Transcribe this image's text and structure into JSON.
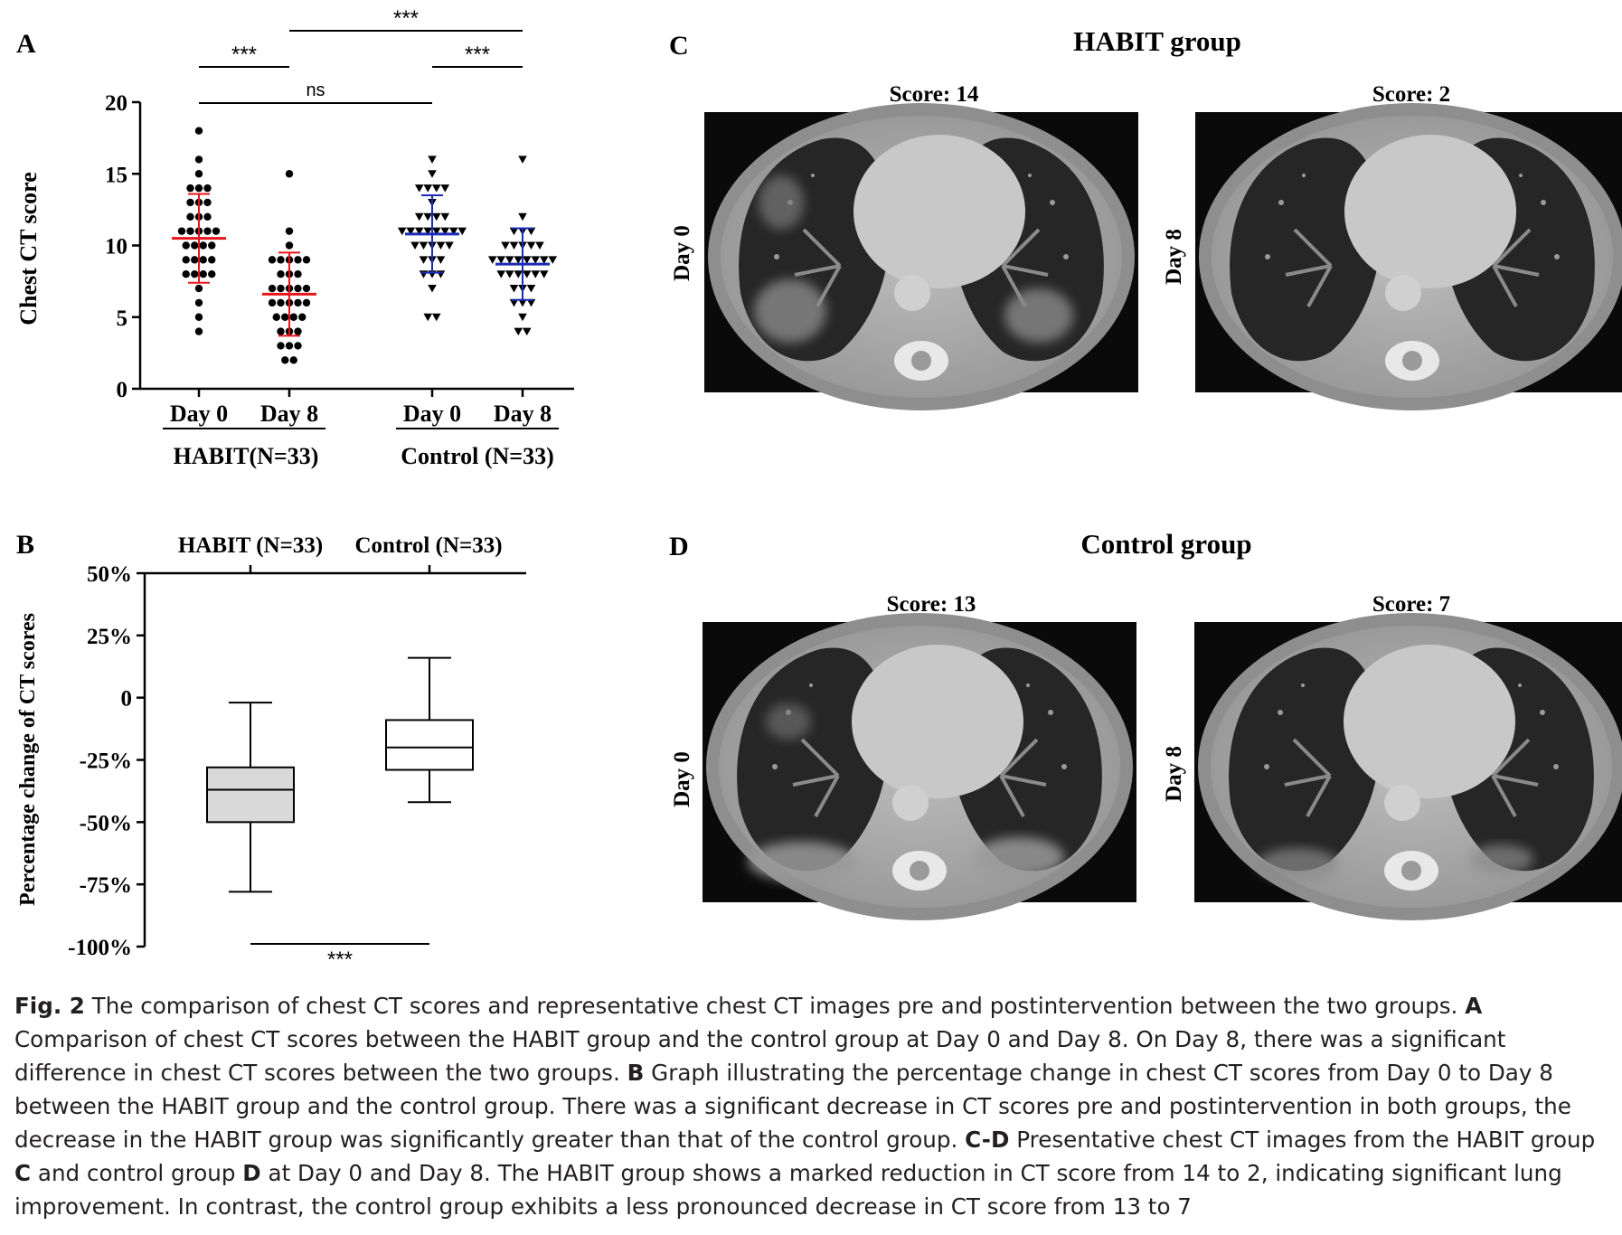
{
  "panels": {
    "A": {
      "letter": "A",
      "chart_data": {
        "type": "scatter",
        "ylabel": "Chest CT score",
        "ylim": [
          0,
          20
        ],
        "yticks": [
          "0",
          "5",
          "10",
          "15",
          "20"
        ],
        "categories": [
          "Day 0",
          "Day 8",
          "Day 0",
          "Day 8"
        ],
        "groups": [
          "HABIT(N=33)",
          "Control (N=33)"
        ],
        "series": [
          {
            "group": "HABIT(N=33)",
            "day": "Day 0",
            "marker": "circle",
            "color": "#000000",
            "bar_color": "#e8141b",
            "mean": 10.5,
            "sd": 3.1,
            "values": [
              18,
              16,
              15,
              14,
              14,
              14,
              13,
              13,
              13,
              12,
              12,
              12,
              11,
              11,
              11,
              11,
              11,
              10,
              10,
              10,
              10,
              9,
              9,
              9,
              9,
              8,
              8,
              8,
              8,
              7,
              6,
              5,
              4
            ]
          },
          {
            "group": "HABIT(N=33)",
            "day": "Day 8",
            "marker": "circle",
            "color": "#000000",
            "bar_color": "#e8141b",
            "mean": 6.6,
            "sd": 2.9,
            "values": [
              15,
              11,
              10,
              9,
              9,
              9,
              9,
              9,
              8,
              8,
              8,
              7,
              7,
              7,
              7,
              7,
              6,
              6,
              6,
              6,
              6,
              5,
              5,
              5,
              5,
              4,
              4,
              4,
              3,
              3,
              3,
              2,
              2
            ]
          },
          {
            "group": "Control (N=33)",
            "day": "Day 0",
            "marker": "triangle-down",
            "color": "#000000",
            "bar_color": "#1b2bb5",
            "mean": 10.8,
            "sd": 2.7,
            "values": [
              16,
              15,
              14,
              14,
              14,
              14,
              13,
              12,
              12,
              12,
              12,
              11,
              11,
              11,
              11,
              11,
              11,
              11,
              11,
              10,
              10,
              10,
              10,
              10,
              9,
              9,
              9,
              8,
              8,
              8,
              7,
              5,
              5
            ]
          },
          {
            "group": "Control (N=33)",
            "day": "Day 8",
            "marker": "triangle-down",
            "color": "#000000",
            "bar_color": "#1b2bb5",
            "mean": 8.7,
            "sd": 2.5,
            "values": [
              16,
              12,
              11,
              11,
              11,
              10,
              10,
              10,
              10,
              10,
              9,
              9,
              9,
              9,
              9,
              9,
              9,
              9,
              8,
              8,
              8,
              8,
              8,
              8,
              7,
              7,
              7,
              6,
              6,
              6,
              5,
              4,
              4
            ]
          }
        ],
        "significance": [
          {
            "from": 0,
            "to": 1,
            "label": "***"
          },
          {
            "from": 1,
            "to": 3,
            "label": "***"
          },
          {
            "from": 2,
            "to": 3,
            "label": "***"
          },
          {
            "from": 0,
            "to": 2,
            "label": "ns"
          }
        ]
      }
    },
    "B": {
      "letter": "B",
      "chart_data": {
        "type": "box",
        "ylabel": "Percentage change of  CT scores",
        "ylim": [
          -100,
          50
        ],
        "yticks": [
          "50%",
          "25%",
          "0",
          "-25%",
          "-50%",
          "-75%",
          "-100%"
        ],
        "categories": [
          "HABIT (N=33)",
          "Control (N=33)"
        ],
        "boxes": [
          {
            "name": "HABIT (N=33)",
            "min": -78,
            "q1": -50,
            "median": -37,
            "q3": -28,
            "max": -2,
            "fill": "#d9d9d9"
          },
          {
            "name": "Control (N=33)",
            "min": -42,
            "q1": -29,
            "median": -20,
            "q3": -9,
            "max": 16,
            "fill": "#ffffff"
          }
        ],
        "significance": [
          {
            "from": 0,
            "to": 1,
            "label": "***"
          }
        ]
      }
    },
    "C": {
      "letter": "C",
      "title": "HABIT group",
      "images": [
        {
          "score": "Score: 14",
          "day": "Day 0"
        },
        {
          "score": "Score: 2",
          "day": "Day 8"
        }
      ]
    },
    "D": {
      "letter": "D",
      "title": "Control group",
      "images": [
        {
          "score": "Score: 13",
          "day": "Day 0"
        },
        {
          "score": "Score: 7",
          "day": "Day 8"
        }
      ]
    }
  },
  "caption": {
    "label": "Fig. 2",
    "s1": "  The comparison of chest CT scores and representative chest CT images pre and postintervention between the two groups. ",
    "a": "A",
    "s2": " Comparison of chest CT scores between the HABIT group and the control group at Day 0 and Day 8. On Day 8, there was a significant difference in chest CT scores between the two groups. ",
    "b": "B",
    "s3": " Graph illustrating the percentage change in chest CT scores from Day 0 to Day 8 between the HABIT group and the control group. There was a significant decrease in CT scores pre and postintervention in both groups, the decrease in the HABIT group was significantly greater than that of the control group. ",
    "cd": "C-D",
    "s4": " Presentative chest CT images from the HABIT group ",
    "c": "C",
    "s5": " and control group ",
    "d": "D",
    "s6": " at Day 0 and Day 8. The HABIT group shows a marked reduction in CT score from 14 to 2, indicating significant lung improvement. In contrast, the control group exhibits a less pronounced decrease in CT score from 13 to 7"
  }
}
